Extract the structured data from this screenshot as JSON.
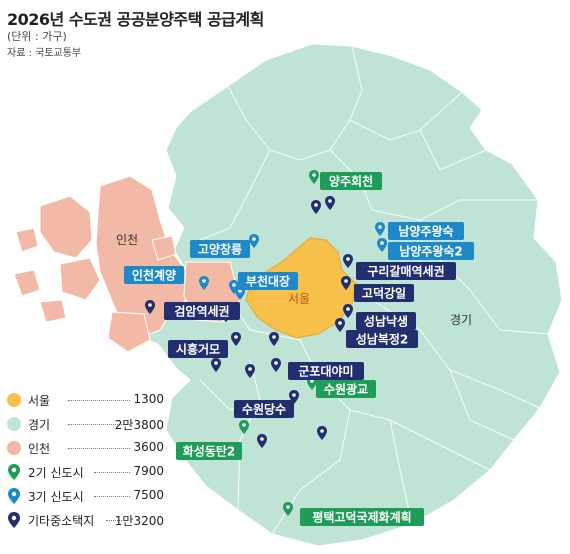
{
  "title": "2026년 수도권 공공분양주택 공급계획",
  "unit": "(단위 : 가구)",
  "source": "자료 : 국토교통부",
  "colors": {
    "seoul": "#F7C04A",
    "gyeonggi": "#BFE3D5",
    "incheon": "#F3B9A7",
    "second_new_town": "#1F9C57",
    "third_new_town": "#1E88C8",
    "other_site": "#232E6E"
  },
  "regions": {
    "seoul": "서울",
    "gyeonggi": "경기",
    "incheon": "인천"
  },
  "legend": [
    {
      "key": "seoul",
      "symbol": "circle",
      "color": "#F7C04A",
      "label": "서울",
      "value": "1300"
    },
    {
      "key": "gyeonggi",
      "symbol": "circle",
      "color": "#BFE3D5",
      "label": "경기",
      "value": "2만3800"
    },
    {
      "key": "incheon",
      "symbol": "circle",
      "color": "#F3B9A7",
      "label": "인천",
      "value": "3600"
    },
    {
      "key": "second",
      "symbol": "pin",
      "color": "#1F9C57",
      "label": "2기 신도시",
      "value": "7900"
    },
    {
      "key": "third",
      "symbol": "pin",
      "color": "#1E88C8",
      "label": "3기 신도시",
      "value": "7500"
    },
    {
      "key": "other",
      "symbol": "pin",
      "color": "#232E6E",
      "label": "기타중소택지",
      "value": "1만3200"
    }
  ],
  "sites": [
    {
      "name": "양주회천",
      "type": "second"
    },
    {
      "name": "남양주왕숙",
      "type": "third"
    },
    {
      "name": "남양주왕숙2",
      "type": "third"
    },
    {
      "name": "고양창릉",
      "type": "third"
    },
    {
      "name": "인천계양",
      "type": "third"
    },
    {
      "name": "부천대장",
      "type": "third"
    },
    {
      "name": "구리갈매역세권",
      "type": "other"
    },
    {
      "name": "고덕강일",
      "type": "other"
    },
    {
      "name": "검암역세권",
      "type": "other"
    },
    {
      "name": "성남낙생",
      "type": "other"
    },
    {
      "name": "성남복정2",
      "type": "other"
    },
    {
      "name": "시흥거모",
      "type": "other"
    },
    {
      "name": "군포대야미",
      "type": "other"
    },
    {
      "name": "수원광교",
      "type": "second"
    },
    {
      "name": "수원당수",
      "type": "other"
    },
    {
      "name": "화성동탄2",
      "type": "second"
    },
    {
      "name": "평택고덕국제화계획",
      "type": "second"
    }
  ]
}
